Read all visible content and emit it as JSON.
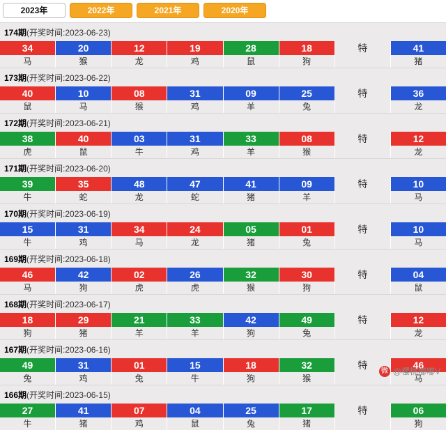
{
  "years": [
    {
      "label": "2023年",
      "active": true
    },
    {
      "label": "2022年",
      "active": false
    },
    {
      "label": "2021年",
      "active": false
    },
    {
      "label": "2020年",
      "active": false
    }
  ],
  "header_prefix": "(开奖时间:",
  "header_suffix": ")",
  "special_label": "特",
  "colors": {
    "red": "#e8322d",
    "blue": "#2857d6",
    "green": "#1a9e3b",
    "bg": "#eceaea",
    "tab_inactive": "#f5a623"
  },
  "periods": [
    {
      "issue": "174期",
      "date": "2023-06-23",
      "balls": [
        {
          "n": "34",
          "c": "red",
          "z": "马"
        },
        {
          "n": "20",
          "c": "blue",
          "z": "猴"
        },
        {
          "n": "12",
          "c": "red",
          "z": "龙"
        },
        {
          "n": "19",
          "c": "red",
          "z": "鸡"
        },
        {
          "n": "28",
          "c": "green",
          "z": "鼠"
        },
        {
          "n": "18",
          "c": "red",
          "z": "狗"
        }
      ],
      "special": {
        "n": "41",
        "c": "blue",
        "z": "猪"
      }
    },
    {
      "issue": "173期",
      "date": "2023-06-22",
      "balls": [
        {
          "n": "40",
          "c": "red",
          "z": "鼠"
        },
        {
          "n": "10",
          "c": "blue",
          "z": "马"
        },
        {
          "n": "08",
          "c": "red",
          "z": "猴"
        },
        {
          "n": "31",
          "c": "blue",
          "z": "鸡"
        },
        {
          "n": "09",
          "c": "blue",
          "z": "羊"
        },
        {
          "n": "25",
          "c": "blue",
          "z": "兔"
        }
      ],
      "special": {
        "n": "36",
        "c": "blue",
        "z": "龙"
      }
    },
    {
      "issue": "172期",
      "date": "2023-06-21",
      "balls": [
        {
          "n": "38",
          "c": "green",
          "z": "虎"
        },
        {
          "n": "40",
          "c": "red",
          "z": "鼠"
        },
        {
          "n": "03",
          "c": "blue",
          "z": "牛"
        },
        {
          "n": "31",
          "c": "blue",
          "z": "鸡"
        },
        {
          "n": "33",
          "c": "green",
          "z": "羊"
        },
        {
          "n": "08",
          "c": "red",
          "z": "猴"
        }
      ],
      "special": {
        "n": "12",
        "c": "red",
        "z": "龙"
      }
    },
    {
      "issue": "171期",
      "date": "2023-06-20",
      "balls": [
        {
          "n": "39",
          "c": "green",
          "z": "牛"
        },
        {
          "n": "35",
          "c": "red",
          "z": "蛇"
        },
        {
          "n": "48",
          "c": "blue",
          "z": "龙"
        },
        {
          "n": "47",
          "c": "blue",
          "z": "蛇"
        },
        {
          "n": "41",
          "c": "blue",
          "z": "猪"
        },
        {
          "n": "09",
          "c": "blue",
          "z": "羊"
        }
      ],
      "special": {
        "n": "10",
        "c": "blue",
        "z": "马"
      }
    },
    {
      "issue": "170期",
      "date": "2023-06-19",
      "balls": [
        {
          "n": "15",
          "c": "blue",
          "z": "牛"
        },
        {
          "n": "31",
          "c": "blue",
          "z": "鸡"
        },
        {
          "n": "34",
          "c": "red",
          "z": "马"
        },
        {
          "n": "24",
          "c": "red",
          "z": "龙"
        },
        {
          "n": "05",
          "c": "green",
          "z": "猪"
        },
        {
          "n": "01",
          "c": "red",
          "z": "兔"
        }
      ],
      "special": {
        "n": "10",
        "c": "blue",
        "z": "马"
      }
    },
    {
      "issue": "169期",
      "date": "2023-06-18",
      "balls": [
        {
          "n": "46",
          "c": "red",
          "z": "马"
        },
        {
          "n": "42",
          "c": "blue",
          "z": "狗"
        },
        {
          "n": "02",
          "c": "red",
          "z": "虎"
        },
        {
          "n": "26",
          "c": "blue",
          "z": "虎"
        },
        {
          "n": "32",
          "c": "green",
          "z": "猴"
        },
        {
          "n": "30",
          "c": "red",
          "z": "狗"
        }
      ],
      "special": {
        "n": "04",
        "c": "blue",
        "z": "鼠"
      }
    },
    {
      "issue": "168期",
      "date": "2023-06-17",
      "balls": [
        {
          "n": "18",
          "c": "red",
          "z": "狗"
        },
        {
          "n": "29",
          "c": "red",
          "z": "猪"
        },
        {
          "n": "21",
          "c": "green",
          "z": "羊"
        },
        {
          "n": "33",
          "c": "green",
          "z": "羊"
        },
        {
          "n": "42",
          "c": "blue",
          "z": "狗"
        },
        {
          "n": "49",
          "c": "green",
          "z": "兔"
        }
      ],
      "special": {
        "n": "12",
        "c": "red",
        "z": "龙"
      }
    },
    {
      "issue": "167期",
      "date": "2023-06-16",
      "balls": [
        {
          "n": "49",
          "c": "green",
          "z": "兔"
        },
        {
          "n": "31",
          "c": "blue",
          "z": "鸡"
        },
        {
          "n": "01",
          "c": "red",
          "z": "兔"
        },
        {
          "n": "15",
          "c": "blue",
          "z": "牛"
        },
        {
          "n": "18",
          "c": "red",
          "z": "狗"
        },
        {
          "n": "32",
          "c": "green",
          "z": "猴"
        }
      ],
      "special": {
        "n": "46",
        "c": "red",
        "z": "马"
      }
    },
    {
      "issue": "166期",
      "date": "2023-06-15",
      "balls": [
        {
          "n": "27",
          "c": "green",
          "z": "牛"
        },
        {
          "n": "41",
          "c": "blue",
          "z": "猪"
        },
        {
          "n": "07",
          "c": "red",
          "z": "鸡"
        },
        {
          "n": "04",
          "c": "blue",
          "z": "鼠"
        },
        {
          "n": "25",
          "c": "blue",
          "z": "兔"
        },
        {
          "n": "17",
          "c": "green",
          "z": "猪"
        }
      ],
      "special": {
        "n": "06",
        "c": "green",
        "z": "狗"
      }
    }
  ],
  "watermark": "@櫻桃嘟嘟V"
}
